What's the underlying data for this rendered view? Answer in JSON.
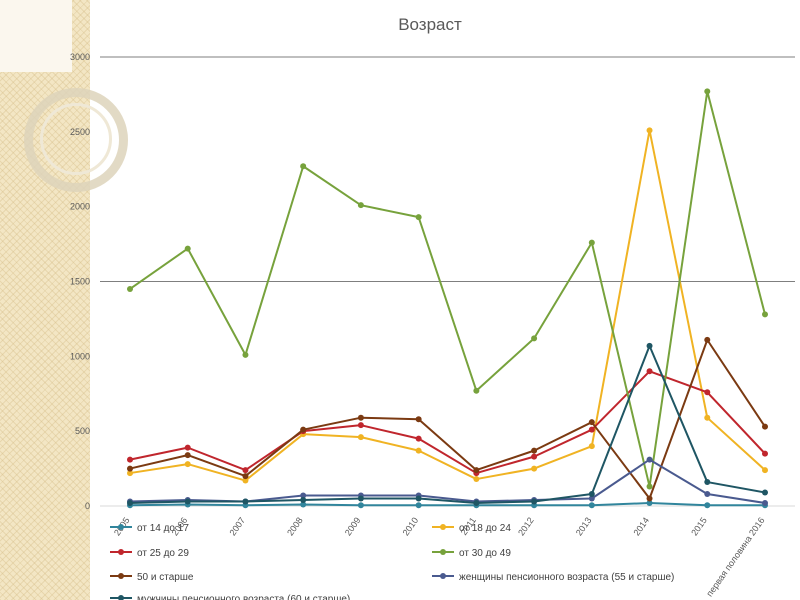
{
  "chart_data": {
    "type": "line",
    "title": "Возраст",
    "xlabel": "",
    "ylabel": "",
    "ylim": [
      0,
      3000
    ],
    "yticks": [
      0,
      500,
      1000,
      1500,
      2000,
      2500,
      3000
    ],
    "grid": true,
    "legend_position": "bottom",
    "categories": [
      "2005",
      "2006",
      "2007",
      "2008",
      "2009",
      "2010",
      "2011",
      "2012",
      "2013",
      "2014",
      "2015",
      "первая половина 2016"
    ],
    "series": [
      {
        "name": "от 14 до 17",
        "color": "#31859c",
        "values": [
          5,
          10,
          5,
          10,
          5,
          5,
          5,
          5,
          5,
          20,
          5,
          5
        ]
      },
      {
        "name": "от 18 до 24",
        "color": "#f0b323",
        "values": [
          220,
          280,
          170,
          480,
          460,
          370,
          180,
          250,
          400,
          2510,
          590,
          240
        ]
      },
      {
        "name": "от 25 до 29",
        "color": "#c0262d",
        "values": [
          310,
          390,
          240,
          500,
          540,
          450,
          220,
          330,
          510,
          900,
          760,
          350
        ]
      },
      {
        "name": "от 30 до 49",
        "color": "#77a23c",
        "values": [
          1450,
          1720,
          1010,
          2270,
          2010,
          1930,
          770,
          1120,
          1760,
          130,
          2770,
          1280
        ]
      },
      {
        "name": "50 и старше",
        "color": "#7b3a12",
        "values": [
          250,
          340,
          200,
          510,
          590,
          580,
          240,
          370,
          560,
          50,
          1110,
          530
        ]
      },
      {
        "name": "женщины пенсионного возраста (55 и старше)",
        "color": "#4a5a8f",
        "values": [
          30,
          40,
          30,
          70,
          70,
          70,
          30,
          40,
          50,
          310,
          80,
          20
        ]
      },
      {
        "name": "мужчины пенсионного возраста (60 и старше)",
        "color": "#1f5664",
        "values": [
          20,
          30,
          30,
          40,
          50,
          50,
          20,
          30,
          80,
          1070,
          160,
          90
        ]
      }
    ]
  }
}
